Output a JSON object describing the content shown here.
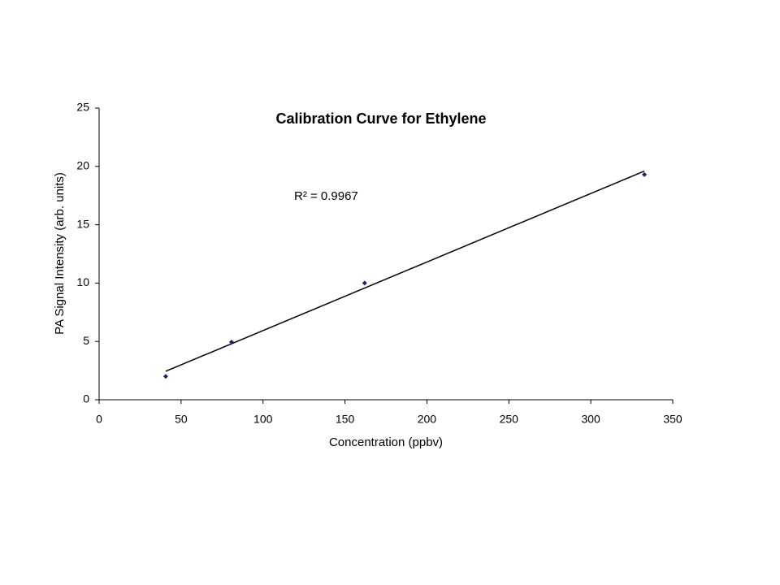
{
  "chart_data": {
    "type": "scatter",
    "title": "Calibration Curve for Ethylene",
    "x_label": "Concentration (ppbv)",
    "y_label": "PA Signal Intensity (arb. units)",
    "annotation": "R² = 0.9967",
    "series": [
      {
        "color": "#1f1f7a",
        "x": [
          40.6,
          80.8,
          162,
          332.7
        ],
        "values": [
          2.0,
          4.94,
          10.0,
          19.3
        ]
      }
    ],
    "trendline": {
      "color": "#000000",
      "x": [
        40.6,
        332.7
      ],
      "values": [
        2.44,
        19.6
      ]
    },
    "xlim": [
      0,
      350
    ],
    "xticks": [
      0,
      50,
      100,
      150,
      200,
      250,
      300,
      350
    ],
    "ylim": [
      0,
      25
    ],
    "yticks": [
      0,
      5,
      10,
      15,
      20,
      25
    ],
    "grid": false
  }
}
